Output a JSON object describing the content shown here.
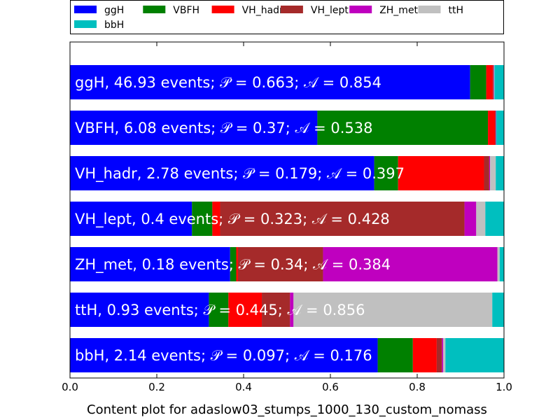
{
  "chart_data": {
    "type": "bar",
    "orientation": "horizontal",
    "stacked": true,
    "xlabel": "Content plot for adaslow03_stumps_1000_130_custom_nomass",
    "xlim": [
      0,
      1
    ],
    "xticks": [
      "0.0",
      "0.2",
      "0.4",
      "0.6",
      "0.8",
      "1.0"
    ],
    "legend_position": "top",
    "series": [
      {
        "name": "ggH",
        "color": "#0000ff"
      },
      {
        "name": "VBFH",
        "color": "#008000"
      },
      {
        "name": "VH_hadr",
        "color": "#ff0000"
      },
      {
        "name": "VH_lept",
        "color": "#a52a2a"
      },
      {
        "name": "ZH_met",
        "color": "#bf00bf"
      },
      {
        "name": "ttH",
        "color": "#c0c0c0"
      },
      {
        "name": "bbH",
        "color": "#00bfbf"
      }
    ],
    "categories": [
      {
        "label": "ggH, 46.93 events; 𝒫 = 0.663; 𝒜 = 0.854",
        "values": [
          0.922,
          0.037,
          0.015,
          0.002,
          0.001,
          0.001,
          0.022
        ]
      },
      {
        "label": "VBFH, 6.08 events; 𝒫 = 0.37; 𝒜 = 0.538",
        "values": [
          0.57,
          0.393,
          0.016,
          0.002,
          0.001,
          0.0,
          0.018
        ]
      },
      {
        "label": "VH_hadr, 2.78 events; 𝒫 = 0.179; 𝒜 = 0.397",
        "values": [
          0.701,
          0.055,
          0.198,
          0.012,
          0.002,
          0.013,
          0.019
        ]
      },
      {
        "label": "VH_lept, 0.4 events; 𝒫 = 0.323; 𝒜 = 0.428",
        "values": [
          0.281,
          0.047,
          0.018,
          0.563,
          0.027,
          0.021,
          0.043
        ]
      },
      {
        "label": "ZH_met, 0.18 events; 𝒫 = 0.34; 𝒜 = 0.384",
        "values": [
          0.369,
          0.014,
          0.004,
          0.196,
          0.402,
          0.005,
          0.01
        ]
      },
      {
        "label": "ttH, 0.93 events; 𝒫 = 0.445; 𝒜 = 0.856",
        "values": [
          0.32,
          0.045,
          0.077,
          0.065,
          0.008,
          0.458,
          0.027
        ]
      },
      {
        "label": "bbH, 2.14 events; 𝒫 = 0.097; 𝒜 = 0.176",
        "values": [
          0.709,
          0.081,
          0.055,
          0.012,
          0.003,
          0.005,
          0.135
        ]
      }
    ]
  }
}
